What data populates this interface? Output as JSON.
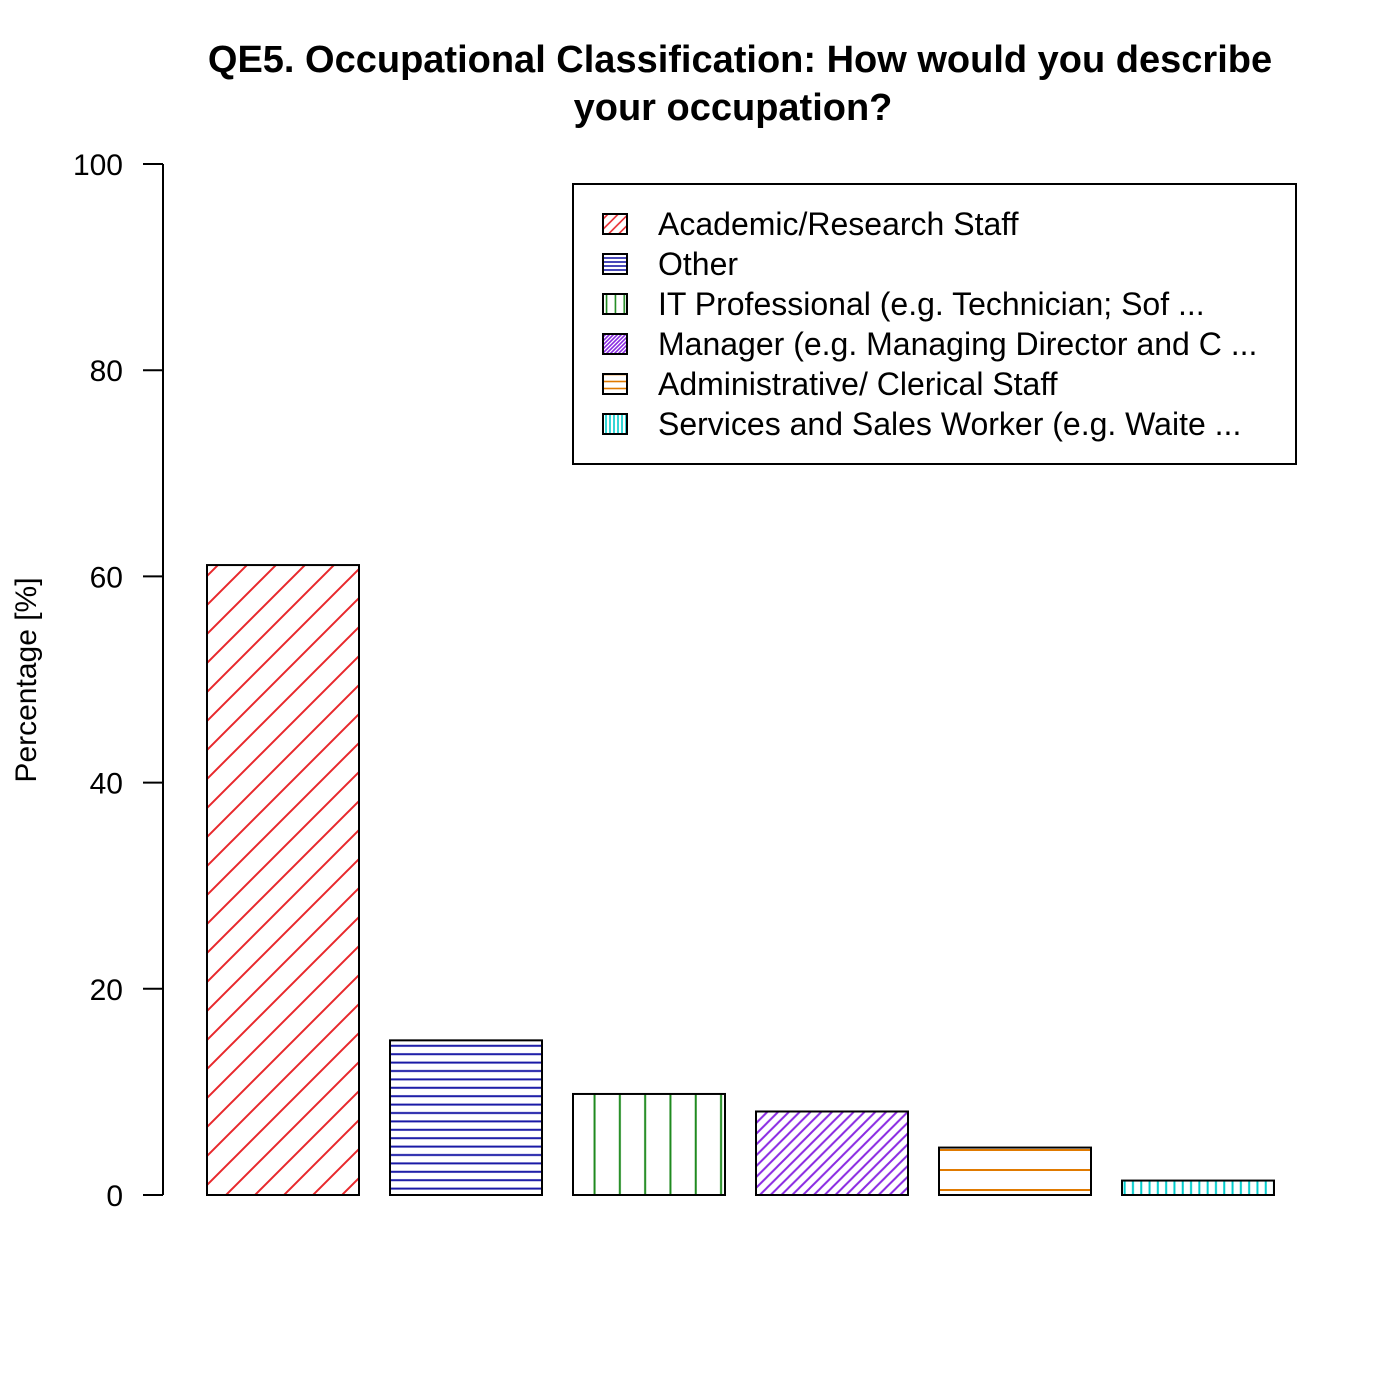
{
  "chart_data": {
    "type": "bar",
    "title_lines": [
      "QE5. Occupational Classification: How would you describe",
      "your occupation?"
    ],
    "xlabel": "",
    "ylabel": "Percentage [%]",
    "ylim": [
      0,
      100
    ],
    "yticks": [
      "0",
      "20",
      "40",
      "60",
      "80",
      "100"
    ],
    "grid": false,
    "legend_position": "top-right",
    "categories": [
      "Academic/Research Staff",
      "Other",
      "IT Professional (e.g. Technician; Sof ...",
      "Manager (e.g. Managing Director and C ...",
      "Administrative/ Clerical Staff",
      "Services and Sales Worker (e.g. Waite ..."
    ],
    "values": [
      61.1,
      15.0,
      9.8,
      8.1,
      4.6,
      1.4
    ],
    "colors": [
      "#e8282c",
      "#1a1aa6",
      "#1f8a1f",
      "#8a2be2",
      "#e07a00",
      "#00cccc"
    ],
    "hatch": [
      "diag45",
      "horizontal",
      "vertical",
      "diag45-dense",
      "horizontal-wide",
      "vertical-dense"
    ]
  }
}
